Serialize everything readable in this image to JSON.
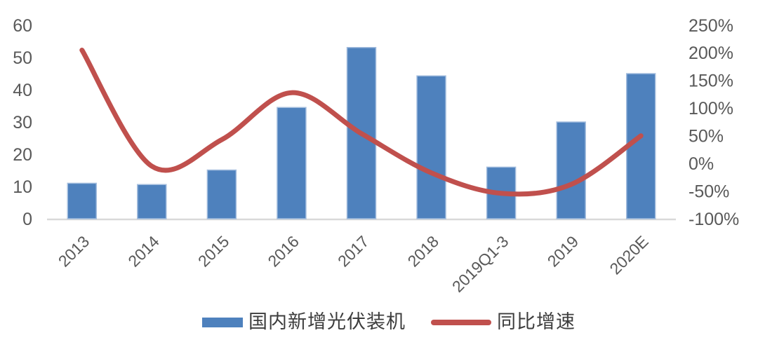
{
  "chart_data": {
    "type": "bar",
    "combo": "bar+line",
    "title": "",
    "categories": [
      "2013",
      "2014",
      "2015",
      "2016",
      "2017",
      "2018",
      "2019Q1-3",
      "2019",
      "2020E"
    ],
    "series": [
      {
        "name": "国内新增光伏装机",
        "type": "bar",
        "axis": "left",
        "values": [
          11,
          10.6,
          15.1,
          34.5,
          53.1,
          44.3,
          16,
          30,
          45
        ]
      },
      {
        "name": "同比增速",
        "type": "line",
        "axis": "right",
        "unit": "%",
        "values": [
          205,
          -5,
          43,
          128,
          54,
          -17,
          -54,
          -38,
          50
        ]
      }
    ],
    "left_axis": {
      "min": 0,
      "max": 60,
      "tick_step": 10,
      "tick_labels": [
        "0",
        "10",
        "20",
        "30",
        "40",
        "50",
        "60"
      ]
    },
    "right_axis": {
      "min": -100,
      "max": 250,
      "tick_step": 50,
      "tick_labels": [
        "-100%",
        "-50%",
        "0%",
        "50%",
        "100%",
        "150%",
        "200%",
        "250%"
      ]
    },
    "grid": "off",
    "legend_position": "bottom"
  },
  "legend": {
    "items": [
      {
        "label": "国内新增光伏装机",
        "swatch": "bar-swatch",
        "color": "#4E81BD"
      },
      {
        "label": "同比增速",
        "swatch": "line-swatch",
        "color": "#C0504D"
      }
    ]
  },
  "colors": {
    "bar_fill": "#4E81BD",
    "bar_border": "#A3BDDE",
    "line_stroke": "#C0504D",
    "axis_text": "#595959",
    "baseline": "#D9D9D9",
    "background": "#FFFFFF"
  }
}
